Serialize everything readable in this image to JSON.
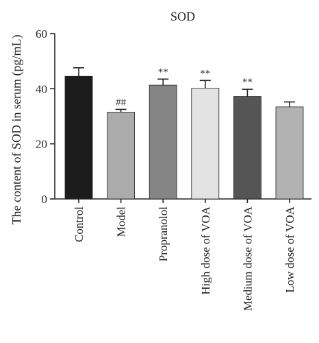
{
  "chart_data": {
    "type": "bar",
    "title": "SOD",
    "xlabel": "",
    "ylabel": "The content of SOD in serum (pg/mL)",
    "ylim": [
      0,
      60
    ],
    "yticks": [
      "0",
      "20",
      "40",
      "60"
    ],
    "categories": [
      "Control",
      "Model",
      "Propranolol",
      "High dose of VOA",
      "Medium dose of VOA",
      "Low dose of VOA"
    ],
    "values": [
      44.5,
      31.5,
      41.3,
      40.2,
      37.2,
      33.4
    ],
    "errors": [
      3.1,
      1.0,
      2.2,
      2.8,
      2.6,
      1.8
    ],
    "significance": [
      "",
      "##",
      "**",
      "**",
      "**",
      ""
    ],
    "bar_colors": [
      "#1c1c1c",
      "#ababab",
      "#858585",
      "#e3e3e3",
      "#555555",
      "#b2b2b2"
    ],
    "grid": false,
    "legend": "none"
  }
}
